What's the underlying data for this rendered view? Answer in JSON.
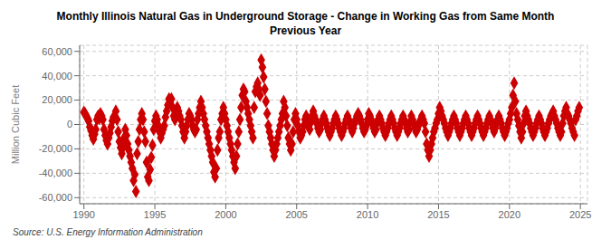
{
  "chart_data": {
    "type": "scatter",
    "title": "Monthly Illinois Natural Gas in Underground Storage - Change in Working Gas from Same Month\nPrevious Year",
    "y_label": "Million Cubic Feet",
    "annotations": [
      "Source: U.S. Energy Information Administration"
    ],
    "color": "#cc0000",
    "marker": "diamond",
    "grid": true,
    "xlim": [
      1989.7,
      2025.5
    ],
    "ylim": [
      -65000,
      65000
    ],
    "xticks": [
      1990,
      1995,
      2000,
      2005,
      2010,
      2015,
      2020,
      2025
    ],
    "yticks": [
      {
        "value": -60000,
        "label": "-60,000"
      },
      {
        "value": -40000,
        "label": "-40,000"
      },
      {
        "value": -20000,
        "label": "-20,000"
      },
      0,
      {
        "value": 20000,
        "label": "20,000"
      },
      {
        "value": 40000,
        "label": "40,000"
      },
      {
        "value": 60000,
        "label": "60,000"
      }
    ],
    "x": [
      1990.0,
      1990.083,
      1990.167,
      1990.25,
      1990.333,
      1990.417,
      1990.5,
      1990.583,
      1990.667,
      1990.75,
      1990.833,
      1990.917,
      1991.0,
      1991.083,
      1991.167,
      1991.25,
      1991.333,
      1991.417,
      1991.5,
      1991.583,
      1991.667,
      1991.75,
      1991.833,
      1991.917,
      1992.0,
      1992.083,
      1992.167,
      1992.25,
      1992.333,
      1992.417,
      1992.5,
      1992.583,
      1992.667,
      1992.75,
      1992.833,
      1992.917,
      1993.0,
      1993.083,
      1993.167,
      1993.25,
      1993.333,
      1993.417,
      1993.5,
      1993.583,
      1993.667,
      1993.75,
      1993.833,
      1993.917,
      1994.0,
      1994.083,
      1994.167,
      1994.25,
      1994.333,
      1994.417,
      1994.5,
      1994.583,
      1994.667,
      1994.75,
      1994.833,
      1994.917,
      1995.0,
      1995.083,
      1995.167,
      1995.25,
      1995.333,
      1995.417,
      1995.5,
      1995.583,
      1995.667,
      1995.75,
      1995.833,
      1995.917,
      1996.0,
      1996.083,
      1996.167,
      1996.25,
      1996.333,
      1996.417,
      1996.5,
      1996.583,
      1996.667,
      1996.75,
      1996.833,
      1996.917,
      1997.0,
      1997.083,
      1997.167,
      1997.25,
      1997.333,
      1997.417,
      1997.5,
      1997.583,
      1997.667,
      1997.75,
      1997.833,
      1997.917,
      1998.0,
      1998.083,
      1998.167,
      1998.25,
      1998.333,
      1998.417,
      1998.5,
      1998.583,
      1998.667,
      1998.75,
      1998.833,
      1998.917,
      1999.0,
      1999.083,
      1999.167,
      1999.25,
      1999.333,
      1999.417,
      1999.5,
      1999.583,
      1999.667,
      1999.75,
      1999.833,
      1999.917,
      2000.0,
      2000.083,
      2000.167,
      2000.25,
      2000.333,
      2000.417,
      2000.5,
      2000.583,
      2000.667,
      2000.75,
      2000.833,
      2000.917,
      2001.0,
      2001.083,
      2001.167,
      2001.25,
      2001.333,
      2001.417,
      2001.5,
      2001.583,
      2001.667,
      2001.75,
      2001.833,
      2001.917,
      2002.0,
      2002.083,
      2002.167,
      2002.25,
      2002.333,
      2002.417,
      2002.5,
      2002.583,
      2002.667,
      2002.75,
      2002.833,
      2002.917,
      2003.0,
      2003.083,
      2003.167,
      2003.25,
      2003.333,
      2003.417,
      2003.5,
      2003.583,
      2003.667,
      2003.75,
      2003.833,
      2003.917,
      2004.0,
      2004.083,
      2004.167,
      2004.25,
      2004.333,
      2004.417,
      2004.5,
      2004.583,
      2004.667,
      2004.75,
      2004.833,
      2004.917,
      2005.0,
      2005.083,
      2005.167,
      2005.25,
      2005.333,
      2005.417,
      2005.5,
      2005.583,
      2005.667,
      2005.75,
      2005.833,
      2005.917,
      2006.0,
      2006.083,
      2006.167,
      2006.25,
      2006.333,
      2006.417,
      2006.5,
      2006.583,
      2006.667,
      2006.75,
      2006.833,
      2006.917,
      2007.0,
      2007.083,
      2007.167,
      2007.25,
      2007.333,
      2007.417,
      2007.5,
      2007.583,
      2007.667,
      2007.75,
      2007.833,
      2007.917,
      2008.0,
      2008.083,
      2008.167,
      2008.25,
      2008.333,
      2008.417,
      2008.5,
      2008.583,
      2008.667,
      2008.75,
      2008.833,
      2008.917,
      2009.0,
      2009.083,
      2009.167,
      2009.25,
      2009.333,
      2009.417,
      2009.5,
      2009.583,
      2009.667,
      2009.75,
      2009.833,
      2009.917,
      2010.0,
      2010.083,
      2010.167,
      2010.25,
      2010.333,
      2010.417,
      2010.5,
      2010.583,
      2010.667,
      2010.75,
      2010.833,
      2010.917,
      2011.0,
      2011.083,
      2011.167,
      2011.25,
      2011.333,
      2011.417,
      2011.5,
      2011.583,
      2011.667,
      2011.75,
      2011.833,
      2011.917,
      2012.0,
      2012.083,
      2012.167,
      2012.25,
      2012.333,
      2012.417,
      2012.5,
      2012.583,
      2012.667,
      2012.75,
      2012.833,
      2012.917,
      2013.0,
      2013.083,
      2013.167,
      2013.25,
      2013.333,
      2013.417,
      2013.5,
      2013.583,
      2013.667,
      2013.75,
      2013.833,
      2013.917,
      2014.0,
      2014.083,
      2014.167,
      2014.25,
      2014.333,
      2014.417,
      2014.5,
      2014.583,
      2014.667,
      2014.75,
      2014.833,
      2014.917,
      2015.0,
      2015.083,
      2015.167,
      2015.25,
      2015.333,
      2015.417,
      2015.5,
      2015.583,
      2015.667,
      2015.75,
      2015.833,
      2015.917,
      2016.0,
      2016.083,
      2016.167,
      2016.25,
      2016.333,
      2016.417,
      2016.5,
      2016.583,
      2016.667,
      2016.75,
      2016.833,
      2016.917,
      2017.0,
      2017.083,
      2017.167,
      2017.25,
      2017.333,
      2017.417,
      2017.5,
      2017.583,
      2017.667,
      2017.75,
      2017.833,
      2017.917,
      2018.0,
      2018.083,
      2018.167,
      2018.25,
      2018.333,
      2018.417,
      2018.5,
      2018.583,
      2018.667,
      2018.75,
      2018.833,
      2018.917,
      2019.0,
      2019.083,
      2019.167,
      2019.25,
      2019.333,
      2019.417,
      2019.5,
      2019.583,
      2019.667,
      2019.75,
      2019.833,
      2019.917,
      2020.0,
      2020.083,
      2020.167,
      2020.25,
      2020.333,
      2020.417,
      2020.5,
      2020.583,
      2020.667,
      2020.75,
      2020.833,
      2020.917,
      2021.0,
      2021.083,
      2021.167,
      2021.25,
      2021.333,
      2021.417,
      2021.5,
      2021.583,
      2021.667,
      2021.75,
      2021.833,
      2021.917,
      2022.0,
      2022.083,
      2022.167,
      2022.25,
      2022.333,
      2022.417,
      2022.5,
      2022.583,
      2022.667,
      2022.75,
      2022.833,
      2022.917,
      2023.0,
      2023.083,
      2023.167,
      2023.25,
      2023.333,
      2023.417,
      2023.5,
      2023.583,
      2023.667,
      2023.75,
      2023.833,
      2023.917,
      2024.0,
      2024.083,
      2024.167,
      2024.25,
      2024.333,
      2024.417,
      2024.5,
      2024.583,
      2024.667,
      2024.75,
      2024.833,
      2024.917
    ],
    "values": [
      10000,
      9000,
      7000,
      5000,
      3000,
      -2000,
      -5000,
      -9000,
      -12000,
      -8000,
      -4000,
      4000,
      7000,
      5000,
      9000,
      7000,
      4000,
      -4000,
      -9000,
      -13000,
      -16000,
      -11000,
      -7000,
      -2000,
      3000,
      6000,
      7000,
      11000,
      4000,
      -6000,
      -14000,
      -19000,
      -24000,
      -19000,
      -11000,
      -4000,
      -9000,
      -16000,
      -21000,
      -26000,
      -31000,
      -36000,
      -46000,
      -41000,
      -55000,
      -24000,
      -14000,
      -4000,
      4000,
      9000,
      4000,
      -6000,
      -14000,
      -31000,
      -43000,
      -46000,
      -37000,
      -27000,
      -17000,
      -4000,
      3000,
      7000,
      4000,
      -1000,
      -6000,
      -11000,
      -7000,
      -4000,
      -1000,
      6000,
      11000,
      16000,
      21000,
      19000,
      21000,
      14000,
      7000,
      4000,
      9000,
      14000,
      11000,
      7000,
      4000,
      -1000,
      -6000,
      -11000,
      -6000,
      -1000,
      4000,
      9000,
      7000,
      4000,
      -1000,
      -4000,
      -6000,
      -4000,
      4000,
      9000,
      14000,
      19000,
      14000,
      9000,
      4000,
      -1000,
      -6000,
      -11000,
      -16000,
      -21000,
      -26000,
      -31000,
      -39000,
      -43000,
      -36000,
      -21000,
      -11000,
      -6000,
      4000,
      9000,
      14000,
      9000,
      4000,
      -1000,
      -6000,
      -11000,
      -16000,
      -21000,
      -26000,
      -31000,
      -36000,
      -26000,
      -16000,
      -6000,
      4000,
      14000,
      24000,
      29000,
      27000,
      19000,
      14000,
      9000,
      4000,
      -1000,
      -6000,
      -11000,
      14000,
      27000,
      31000,
      34000,
      29000,
      24000,
      53000,
      47000,
      39000,
      29000,
      19000,
      9000,
      -1000,
      -6000,
      -11000,
      -16000,
      -21000,
      -26000,
      -21000,
      -16000,
      -11000,
      -6000,
      -1000,
      4000,
      9000,
      19000,
      14000,
      7000,
      -1000,
      -11000,
      -16000,
      -21000,
      -16000,
      -6000,
      4000,
      9000,
      4000,
      -1000,
      -6000,
      -11000,
      -9000,
      -6000,
      -1000,
      4000,
      7000,
      4000,
      -1000,
      -4000,
      2000,
      7000,
      11000,
      7000,
      4000,
      1000,
      -3000,
      -6000,
      -4000,
      1000,
      4000,
      7000,
      4000,
      1000,
      -3000,
      -6000,
      -9000,
      -6000,
      -3000,
      1000,
      4000,
      7000,
      4000,
      1000,
      -3000,
      -6000,
      -9000,
      -6000,
      -3000,
      1000,
      4000,
      7000,
      4000,
      1000,
      -3000,
      -6000,
      -3000,
      1000,
      4000,
      7000,
      9000,
      7000,
      4000,
      1000,
      -3000,
      -6000,
      -4000,
      -1000,
      4000,
      9000,
      7000,
      4000,
      1000,
      -3000,
      -6000,
      -4000,
      1000,
      4000,
      7000,
      4000,
      1000,
      -3000,
      -6000,
      -9000,
      -6000,
      -3000,
      1000,
      4000,
      7000,
      4000,
      1000,
      -3000,
      -6000,
      -9000,
      -6000,
      -3000,
      1000,
      4000,
      7000,
      4000,
      1000,
      -3000,
      -6000,
      -4000,
      2000,
      7000,
      4000,
      1000,
      -3000,
      -6000,
      -4000,
      -1000,
      2000,
      4000,
      7000,
      4000,
      1000,
      -6000,
      -16000,
      -21000,
      -26000,
      -21000,
      -16000,
      -11000,
      -6000,
      -3000,
      1000,
      4000,
      9000,
      14000,
      11000,
      7000,
      4000,
      1000,
      -3000,
      -6000,
      -9000,
      -6000,
      -3000,
      1000,
      4000,
      7000,
      4000,
      1000,
      -3000,
      -6000,
      -9000,
      -6000,
      -3000,
      1000,
      4000,
      7000,
      4000,
      1000,
      -3000,
      -6000,
      -9000,
      -6000,
      -3000,
      1000,
      4000,
      7000,
      4000,
      1000,
      -3000,
      -6000,
      -9000,
      -6000,
      -3000,
      1000,
      4000,
      7000,
      4000,
      1000,
      -3000,
      -6000,
      -3000,
      1000,
      4000,
      7000,
      4000,
      1000,
      -3000,
      -6000,
      -9000,
      -6000,
      -3000,
      1000,
      4000,
      9000,
      14000,
      24000,
      34000,
      19000,
      9000,
      4000,
      -1000,
      -6000,
      -11000,
      -6000,
      1000,
      7000,
      11000,
      7000,
      4000,
      1000,
      -3000,
      -6000,
      -9000,
      -6000,
      -3000,
      1000,
      4000,
      7000,
      4000,
      1000,
      -3000,
      -6000,
      -9000,
      -6000,
      -3000,
      1000,
      4000,
      7000,
      9000,
      11000,
      7000,
      4000,
      1000,
      -3000,
      -6000,
      -9000,
      -6000,
      1000,
      7000,
      11000,
      14000,
      9000,
      7000,
      4000,
      1000,
      -3000,
      -6000,
      -9000,
      4000,
      7000,
      11000,
      14000
    ]
  }
}
